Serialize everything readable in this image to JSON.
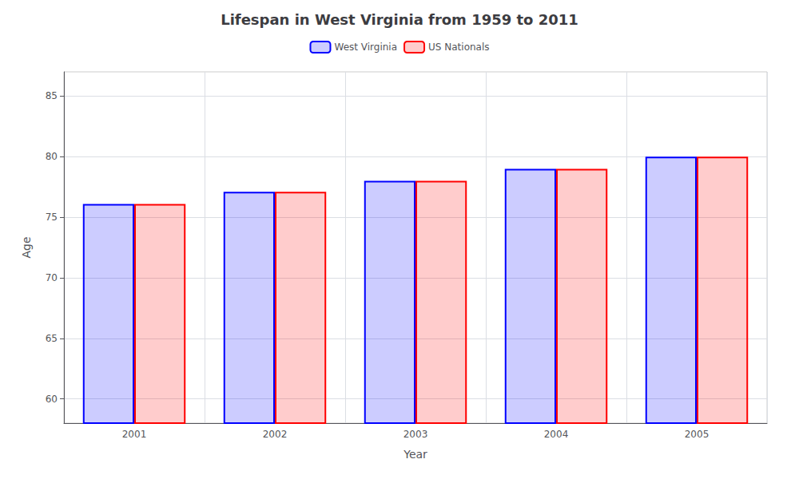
{
  "chart_data": {
    "type": "bar",
    "title": "Lifespan in West Virginia from 1959 to 2011",
    "x_label": "Year",
    "y_label": "Age",
    "categories": [
      "2001",
      "2002",
      "2003",
      "2004",
      "2005"
    ],
    "series": [
      {
        "name": "West Virginia",
        "color": "#0000ff",
        "values": [
          76.1,
          77.1,
          78.0,
          79.0,
          80.0
        ]
      },
      {
        "name": "US Nationals",
        "color": "#ff0000",
        "values": [
          76.1,
          77.1,
          78.0,
          79.0,
          80.0
        ]
      }
    ],
    "ylim": [
      58,
      87
    ],
    "yticks": [
      60,
      65,
      70,
      75,
      80,
      85
    ],
    "grid": true,
    "legend": "top"
  }
}
